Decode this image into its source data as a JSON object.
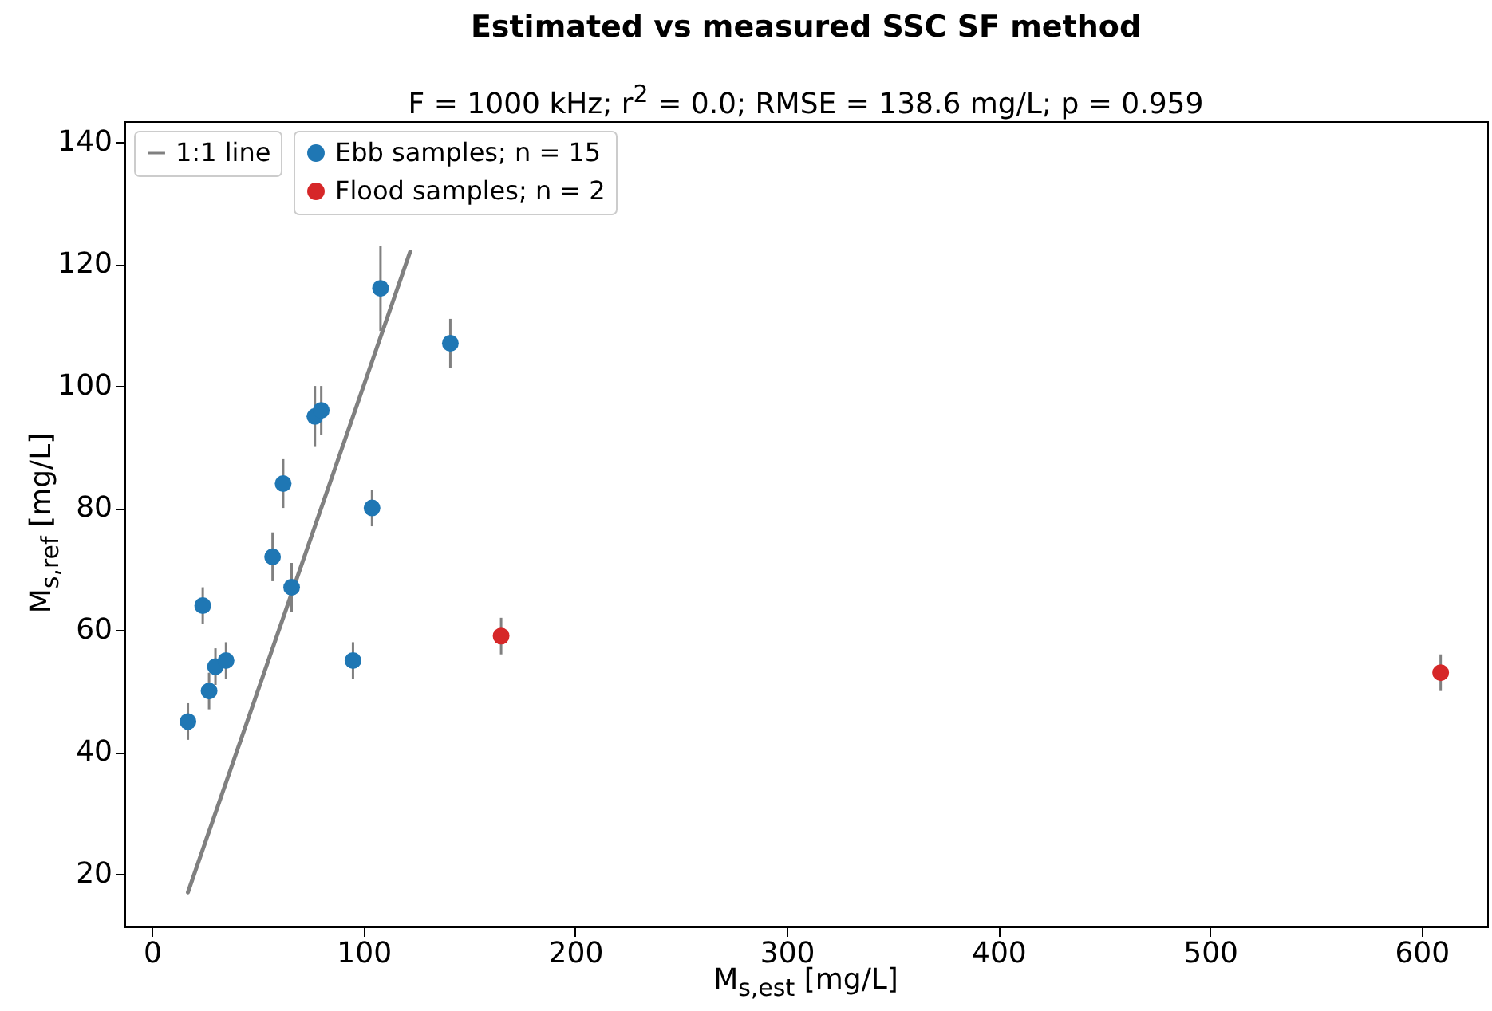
{
  "chart_data": {
    "type": "scatter",
    "title": "Estimated vs measured SSC SF method",
    "subtitle": "F = 1000 kHz; r$^{2}$ = 0.0; RMSE = 138.6 mg/L; p = 0.959",
    "xlabel": "M$_{s,est}$ [mg/L]",
    "ylabel": "M$_{s,ref}$ [mg/L]",
    "xlim": [
      -13,
      631
    ],
    "ylim": [
      11.4,
      143.4
    ],
    "xticks": [
      0,
      100,
      200,
      300,
      400,
      500,
      600
    ],
    "yticks": [
      20,
      40,
      60,
      80,
      100,
      120,
      140
    ],
    "grid": false,
    "legend": "top left",
    "marker": "circle",
    "line_style": "solid",
    "series": [
      {
        "name": "1:1 line",
        "type": "line",
        "marker": "none",
        "color": "#808080",
        "x": [
          17,
          122
        ],
        "values": [
          17,
          122
        ]
      },
      {
        "name": "Ebb samples; n = 15",
        "color": "#1f77b4",
        "x": [
          17,
          24,
          27,
          30,
          35,
          57,
          62,
          66,
          77,
          80,
          104,
          95,
          108,
          141
        ],
        "values": [
          45,
          64,
          50,
          54,
          55,
          72,
          84,
          67,
          95,
          96,
          80,
          55,
          116,
          107
        ],
        "errors": [
          3,
          3,
          3,
          3,
          3,
          4,
          4,
          4,
          5,
          4,
          3,
          3,
          7,
          4
        ]
      },
      {
        "name": "Flood samples; n = 2",
        "color": "#d62728",
        "x": [
          165,
          609
        ],
        "values": [
          59,
          53
        ],
        "errors": [
          3,
          3
        ]
      }
    ]
  }
}
